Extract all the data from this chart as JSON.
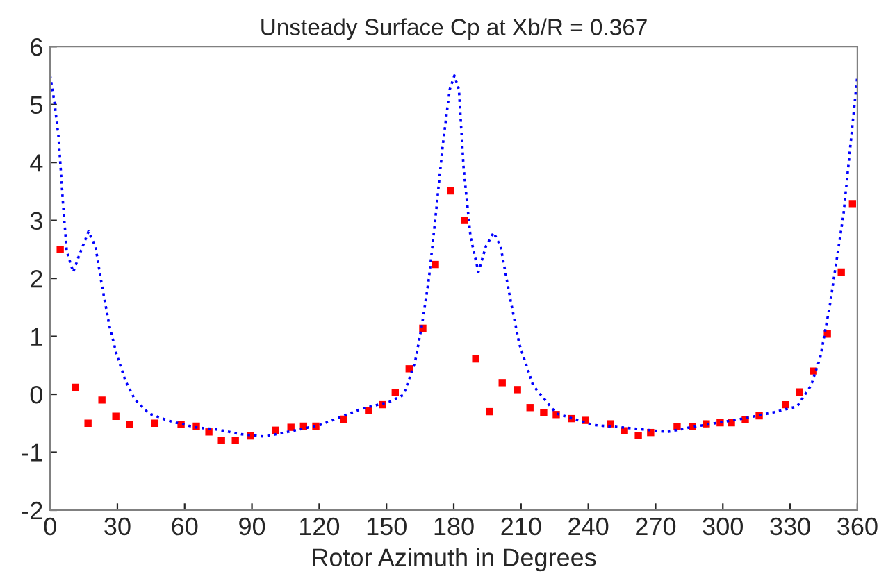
{
  "chart_data": {
    "type": "line",
    "title": "Unsteady Surface Cp at Xb/R = 0.367",
    "xlabel": "Rotor Azimuth in Degrees",
    "xlim": [
      0,
      360
    ],
    "xticks": [
      0,
      30,
      60,
      90,
      120,
      150,
      180,
      210,
      240,
      270,
      300,
      330,
      360
    ],
    "ylim": [
      -2,
      6
    ],
    "yticks": [
      -2,
      -1,
      0,
      1,
      2,
      3,
      4,
      5,
      6
    ],
    "grid": false,
    "legend": false,
    "series": [
      {
        "color": "#0000ff",
        "line_style": "dotted",
        "marker": "none",
        "x": [
          0,
          2,
          3.7,
          4.7,
          5.8,
          7.4,
          10.3,
          13,
          17.1,
          20.2,
          23.3,
          26.4,
          29.5,
          33.6,
          37.8,
          44,
          52.2,
          64.6,
          74.9,
          85.3,
          95.6,
          105.9,
          120.4,
          139,
          151.4,
          157.6,
          162.7,
          165.8,
          168.9,
          172,
          175.1,
          178.2,
          180.3,
          182.3,
          184.4,
          187.5,
          191,
          194.3,
          197.8,
          200.9,
          205.1,
          209.2,
          215.4,
          225.7,
          242.2,
          254.6,
          264.9,
          275.3,
          285.6,
          298,
          310.4,
          322.8,
          333.1,
          339.3,
          343.4,
          347.6,
          350.7,
          353.8,
          356.9,
          360
        ],
        "values": [
          5.5,
          5.02,
          4.46,
          3.9,
          3.26,
          2.47,
          2.11,
          2.4,
          2.81,
          2.55,
          1.83,
          1.19,
          0.71,
          0.23,
          -0.09,
          -0.33,
          -0.45,
          -0.57,
          -0.61,
          -0.69,
          -0.73,
          -0.65,
          -0.53,
          -0.25,
          -0.13,
          -0.01,
          0.55,
          1.19,
          1.99,
          3.11,
          4.3,
          5.26,
          5.5,
          5.26,
          3.9,
          2.71,
          2.11,
          2.55,
          2.79,
          2.55,
          1.67,
          0.87,
          0.15,
          -0.33,
          -0.53,
          -0.57,
          -0.61,
          -0.65,
          -0.57,
          -0.49,
          -0.41,
          -0.31,
          -0.21,
          0.15,
          0.63,
          1.51,
          2.31,
          3.11,
          4.3,
          5.5
        ]
      },
      {
        "type": "scatter",
        "color": "#ff0000",
        "marker": "square",
        "x": [
          4.5,
          11.3,
          16.9,
          23.1,
          29.3,
          35.5,
          46.7,
          58.4,
          65.2,
          70.8,
          76.4,
          82.6,
          89.4,
          100.5,
          107.4,
          113,
          118.5,
          130.9,
          142,
          148.3,
          153.9,
          160.1,
          166.2,
          171.8,
          178.6,
          184.8,
          189.8,
          196,
          201.6,
          208.4,
          214,
          220.1,
          225.7,
          232.5,
          238.7,
          249.9,
          256.1,
          262.3,
          267.8,
          279.6,
          286.4,
          292.6,
          298.8,
          303.8,
          310,
          316.2,
          328,
          334.2,
          340.4,
          346.6,
          352.8,
          357.8
        ],
        "values": [
          2.5,
          0.12,
          -0.5,
          -0.1,
          -0.38,
          -0.52,
          -0.5,
          -0.52,
          -0.55,
          -0.65,
          -0.8,
          -0.8,
          -0.72,
          -0.62,
          -0.57,
          -0.55,
          -0.55,
          -0.43,
          -0.28,
          -0.18,
          0.03,
          0.44,
          1.14,
          2.24,
          3.51,
          3.0,
          0.61,
          -0.3,
          0.2,
          0.08,
          -0.23,
          -0.32,
          -0.35,
          -0.42,
          -0.45,
          -0.51,
          -0.63,
          -0.71,
          -0.66,
          -0.56,
          -0.56,
          -0.51,
          -0.49,
          -0.49,
          -0.44,
          -0.37,
          -0.18,
          0.04,
          0.4,
          1.04,
          2.11,
          3.29
        ]
      }
    ]
  }
}
